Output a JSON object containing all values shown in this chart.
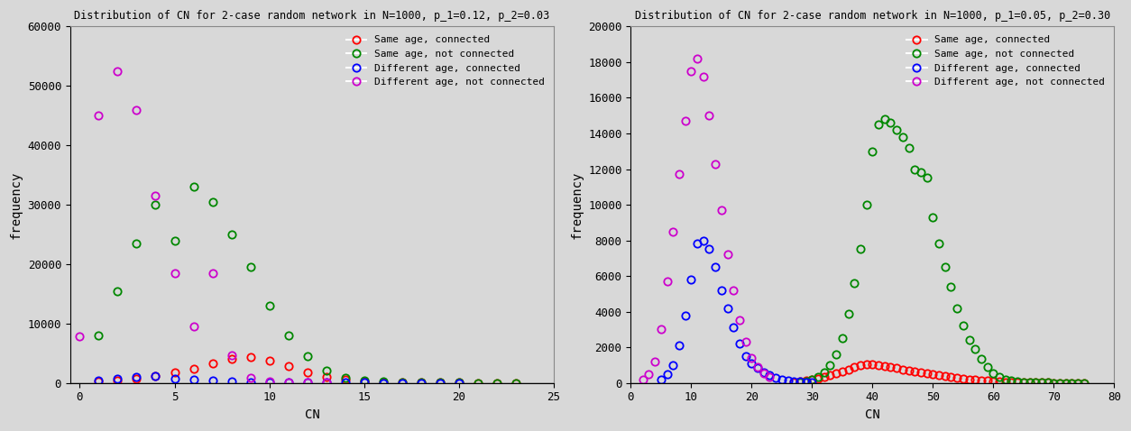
{
  "chart1": {
    "title": "Distribution of CN for 2-case random network in N=1000, p_1=0.12, p_2=0.03",
    "xlabel": "CN",
    "ylabel": "frequency",
    "xlim": [
      -0.5,
      25
    ],
    "ylim": [
      0,
      60000
    ],
    "yticks": [
      0,
      10000,
      20000,
      30000,
      40000,
      50000,
      60000
    ],
    "same_connected": {
      "x": [
        1,
        2,
        3,
        4,
        5,
        6,
        7,
        8,
        9,
        10,
        11,
        12,
        13,
        14,
        15,
        16,
        17,
        18,
        19,
        20,
        21,
        22,
        23
      ],
      "y": [
        200,
        400,
        700,
        1100,
        1700,
        2400,
        3300,
        4100,
        4300,
        3800,
        2900,
        1800,
        1000,
        500,
        250,
        150,
        100,
        70,
        40,
        25,
        15,
        8,
        3
      ]
    },
    "same_not_connected": {
      "x": [
        1,
        2,
        3,
        4,
        5,
        6,
        7,
        8,
        9,
        10,
        11,
        12,
        13,
        14,
        15,
        16,
        17,
        18,
        19,
        20,
        21,
        22,
        23
      ],
      "y": [
        8000,
        15500,
        23500,
        30000,
        24000,
        33000,
        30500,
        25000,
        19500,
        13000,
        8000,
        4500,
        2000,
        800,
        350,
        200,
        120,
        80,
        50,
        30,
        15,
        8,
        3
      ]
    },
    "diff_connected": {
      "x": [
        1,
        2,
        3,
        4,
        5,
        6,
        7,
        8,
        9,
        10,
        11,
        12,
        13,
        14,
        15,
        16,
        17,
        18,
        19,
        20
      ],
      "y": [
        400,
        700,
        1000,
        1200,
        700,
        500,
        350,
        250,
        150,
        100,
        80,
        60,
        40,
        30,
        20,
        15,
        10,
        7,
        4,
        2
      ]
    },
    "diff_not_connected": {
      "x": [
        0,
        1,
        2,
        3,
        4,
        5,
        6,
        7,
        8,
        9,
        10,
        11,
        12,
        13
      ],
      "y": [
        7800,
        45000,
        52500,
        46000,
        31500,
        18500,
        9500,
        18500,
        4700,
        800,
        300,
        150,
        80,
        40
      ]
    }
  },
  "chart2": {
    "title": "Distribution of CN for 2-case random network in N=1000, p_1=0.05, p_2=0.30",
    "xlabel": "CN",
    "ylabel": "frequency",
    "xlim": [
      0,
      80
    ],
    "ylim": [
      0,
      20000
    ],
    "yticks": [
      0,
      2000,
      4000,
      6000,
      8000,
      10000,
      12000,
      14000,
      16000,
      18000,
      20000
    ],
    "same_connected": {
      "x": [
        27,
        28,
        29,
        30,
        31,
        32,
        33,
        34,
        35,
        36,
        37,
        38,
        39,
        40,
        41,
        42,
        43,
        44,
        45,
        46,
        47,
        48,
        49,
        50,
        51,
        52,
        53,
        54,
        55,
        56,
        57,
        58,
        59,
        60,
        61,
        62,
        63,
        64,
        65,
        66,
        67,
        68,
        69,
        70,
        71,
        72,
        73,
        74,
        75
      ],
      "y": [
        50,
        80,
        120,
        180,
        250,
        330,
        420,
        530,
        640,
        760,
        880,
        980,
        1050,
        1050,
        1000,
        950,
        880,
        820,
        750,
        700,
        650,
        590,
        540,
        480,
        430,
        370,
        320,
        270,
        230,
        190,
        160,
        130,
        110,
        90,
        70,
        55,
        40,
        30,
        25,
        18,
        13,
        9,
        7,
        5,
        4,
        3,
        2,
        1,
        1
      ]
    },
    "same_not_connected": {
      "x": [
        28,
        29,
        30,
        31,
        32,
        33,
        34,
        35,
        36,
        37,
        38,
        39,
        40,
        41,
        42,
        43,
        44,
        45,
        46,
        47,
        48,
        49,
        50,
        51,
        52,
        53,
        54,
        55,
        56,
        57,
        58,
        59,
        60,
        61,
        62,
        63,
        64,
        65,
        66,
        67,
        68,
        69,
        70,
        71,
        72,
        73,
        74,
        75
      ],
      "y": [
        50,
        100,
        200,
        350,
        600,
        1000,
        1600,
        2500,
        3900,
        5600,
        7500,
        10000,
        13000,
        14500,
        14800,
        14600,
        14200,
        13800,
        13200,
        12000,
        11800,
        11500,
        9300,
        7800,
        6500,
        5400,
        4200,
        3200,
        2400,
        1900,
        1350,
        900,
        560,
        350,
        200,
        120,
        75,
        45,
        28,
        18,
        12,
        8,
        5,
        4,
        3,
        2,
        1,
        1
      ]
    },
    "diff_connected": {
      "x": [
        5,
        6,
        7,
        8,
        9,
        10,
        11,
        12,
        13,
        14,
        15,
        16,
        17,
        18,
        19,
        20,
        21,
        22,
        23,
        24,
        25,
        26,
        27,
        28,
        29,
        30
      ],
      "y": [
        200,
        500,
        1000,
        2100,
        3800,
        5800,
        7800,
        8000,
        7500,
        6500,
        5200,
        4200,
        3100,
        2200,
        1500,
        1100,
        850,
        600,
        420,
        300,
        200,
        140,
        100,
        70,
        45,
        25
      ]
    },
    "diff_not_connected": {
      "x": [
        2,
        3,
        4,
        5,
        6,
        7,
        8,
        9,
        10,
        11,
        12,
        13,
        14,
        15,
        16,
        17,
        18,
        19,
        20,
        21,
        22,
        23
      ],
      "y": [
        200,
        500,
        1200,
        3000,
        5700,
        8500,
        11700,
        14700,
        17500,
        18200,
        17200,
        15000,
        12300,
        9700,
        7200,
        5200,
        3500,
        2300,
        1400,
        900,
        550,
        330
      ]
    }
  },
  "colors": {
    "same_connected": "#ff0000",
    "same_not_connected": "#008800",
    "diff_connected": "#0000ff",
    "diff_not_connected": "#cc00cc"
  },
  "legend_labels": {
    "same_connected": "Same age, connected",
    "same_not_connected": "Same age, not connected",
    "diff_connected": "Different age, connected",
    "diff_not_connected": "Different age, not connected"
  },
  "background_color": "#d8d8d8"
}
